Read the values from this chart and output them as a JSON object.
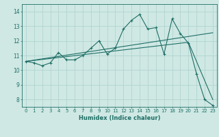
{
  "xlabel": "Humidex (Indice chaleur)",
  "bg_color": "#cfe8e4",
  "grid_color": "#b0d4cf",
  "line_color": "#1e6e65",
  "xlim": [
    -0.5,
    23.5
  ],
  "ylim": [
    7.5,
    14.5
  ],
  "xticks": [
    0,
    1,
    2,
    3,
    4,
    5,
    6,
    7,
    8,
    9,
    10,
    11,
    12,
    13,
    14,
    15,
    16,
    17,
    18,
    19,
    20,
    21,
    22,
    23
  ],
  "yticks": [
    8,
    9,
    10,
    11,
    12,
    13,
    14
  ],
  "line1_x": [
    0,
    1,
    2,
    3,
    4,
    5,
    6,
    7,
    8,
    9,
    10,
    11,
    12,
    13,
    14,
    15,
    16,
    17,
    18,
    19,
    20,
    21,
    22,
    23
  ],
  "line1_y": [
    10.6,
    10.5,
    10.3,
    10.5,
    11.2,
    10.7,
    10.7,
    11.0,
    11.5,
    12.0,
    11.1,
    11.5,
    12.8,
    13.4,
    13.8,
    12.8,
    12.9,
    11.1,
    13.5,
    12.5,
    11.85,
    9.75,
    8.0,
    7.6
  ],
  "line2_x": [
    0,
    23
  ],
  "line2_y": [
    10.6,
    12.55
  ],
  "line3_x": [
    0,
    20,
    23
  ],
  "line3_y": [
    10.6,
    11.9,
    8.0
  ],
  "xlabel_fontsize": 6,
  "tick_fontsize": 5,
  "tick_color": "#1e6e65"
}
